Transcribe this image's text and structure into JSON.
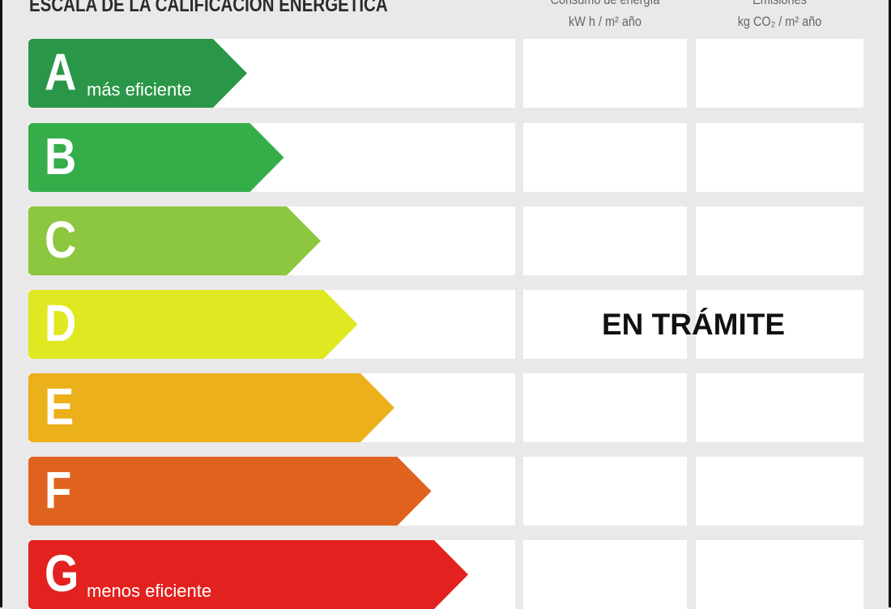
{
  "title": "ESCALA DE LA CALIFICACION ENERGETICA",
  "columns": [
    {
      "title": "Consumo de energía",
      "unit": "kW h / m² año"
    },
    {
      "title": "Emisiones",
      "unit": "kg CO₂ / m² año"
    }
  ],
  "ratings": [
    {
      "letter": "A",
      "label": "más eficiente",
      "color": "#2a9748"
    },
    {
      "letter": "B",
      "label": "",
      "color": "#35ae4a"
    },
    {
      "letter": "C",
      "label": "",
      "color": "#8dc63f"
    },
    {
      "letter": "D",
      "label": "",
      "color": "#dfe820"
    },
    {
      "letter": "E",
      "label": "",
      "color": "#ebb01a"
    },
    {
      "letter": "F",
      "label": "",
      "color": "#df631f"
    },
    {
      "letter": "G",
      "label": "menos eficiente",
      "color": "#e3211f"
    }
  ],
  "status": "EN TRÁMITE"
}
